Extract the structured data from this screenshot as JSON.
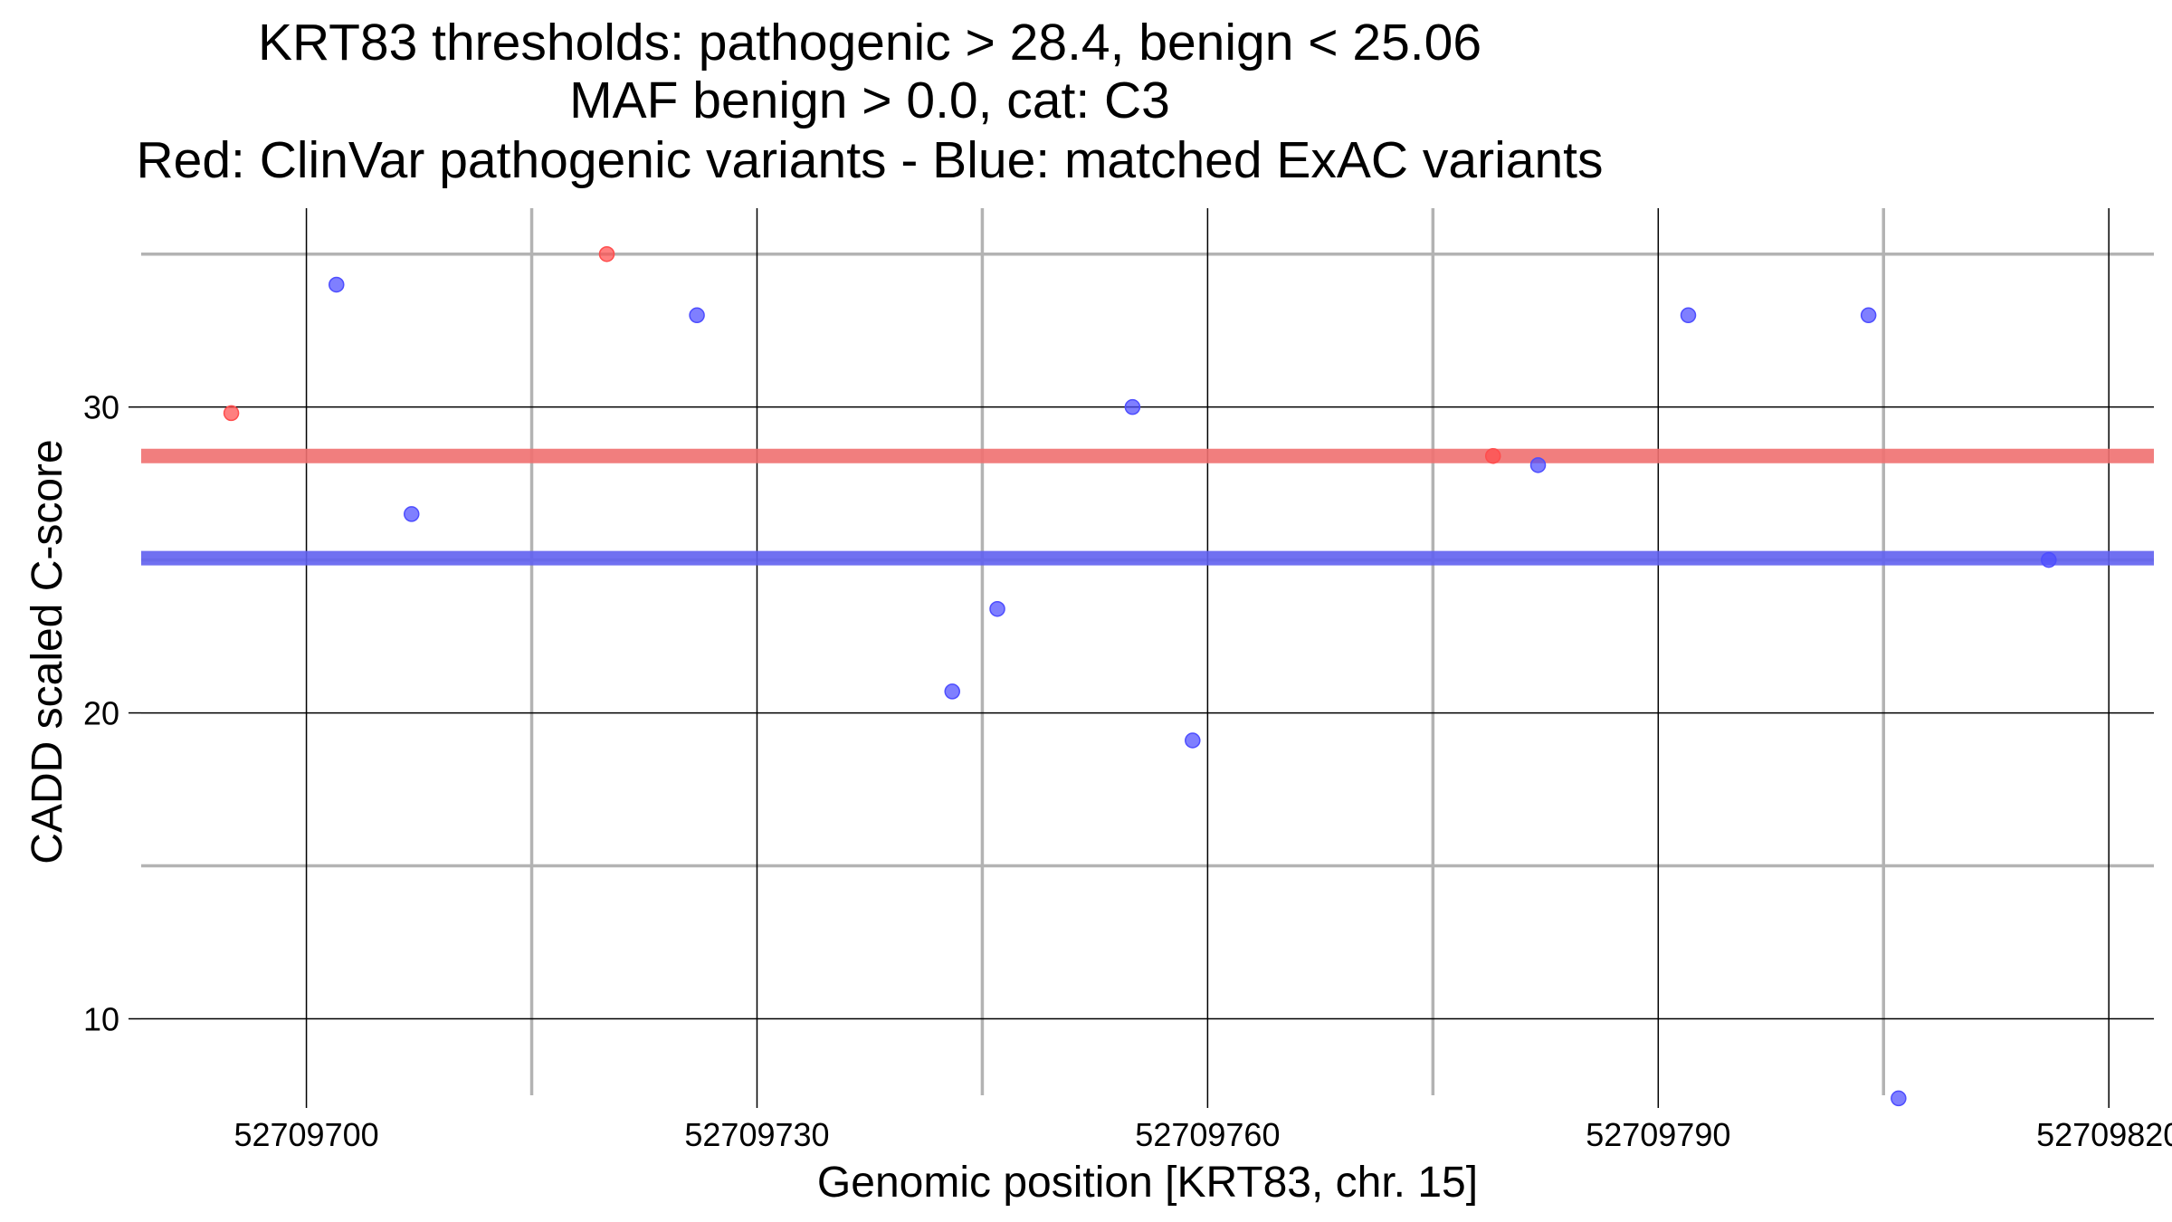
{
  "chart_data": {
    "type": "scatter",
    "title_lines": [
      "KRT83 thresholds: pathogenic > 28.4, benign < 25.06",
      "MAF benign > 0.0, cat: C3",
      "Red: ClinVar pathogenic variants - Blue: matched ExAC variants"
    ],
    "xlabel": "Genomic position [KRT83, chr. 15]",
    "ylabel": "CADD scaled C-score",
    "xlim": [
      52709689,
      52709823
    ],
    "ylim": [
      7.5,
      36.5
    ],
    "x_major_ticks": [
      52709700,
      52709730,
      52709760,
      52709790,
      52709820
    ],
    "x_tick_labels": [
      "52709700",
      "52709730",
      "52709760",
      "52709790",
      "52709820"
    ],
    "x_minor_ticks": [
      52709715,
      52709745,
      52709775,
      52709805
    ],
    "y_major_ticks": [
      10,
      20,
      30
    ],
    "y_tick_labels": [
      "10",
      "20",
      "30"
    ],
    "y_minor_ticks": [
      15,
      25,
      35
    ],
    "grid": true,
    "thresholds": {
      "pathogenic": 28.4,
      "benign": 25.06,
      "maf_benign": 0.0,
      "category": "C3"
    },
    "threshold_lines": [
      {
        "name": "pathogenic-threshold",
        "y": 28.4,
        "color": "#f07070"
      },
      {
        "name": "benign-threshold",
        "y": 25.06,
        "color": "#6060f0"
      }
    ],
    "series": [
      {
        "name": "ClinVar pathogenic variants",
        "color": "#ff4d4d",
        "points": [
          {
            "x": 52709695,
            "y": 29.8
          },
          {
            "x": 52709720,
            "y": 35.0
          },
          {
            "x": 52709779,
            "y": 28.4
          }
        ]
      },
      {
        "name": "matched ExAC variants",
        "color": "#4d4dff",
        "points": [
          {
            "x": 52709702,
            "y": 34.0
          },
          {
            "x": 52709707,
            "y": 26.5
          },
          {
            "x": 52709726,
            "y": 33.0
          },
          {
            "x": 52709743,
            "y": 20.7
          },
          {
            "x": 52709746,
            "y": 23.4
          },
          {
            "x": 52709755,
            "y": 30.0
          },
          {
            "x": 52709759,
            "y": 19.1
          },
          {
            "x": 52709782,
            "y": 28.1
          },
          {
            "x": 52709792,
            "y": 33.0
          },
          {
            "x": 52709804,
            "y": 33.0
          },
          {
            "x": 52709806,
            "y": 7.4
          },
          {
            "x": 52709816,
            "y": 25.0
          }
        ]
      }
    ]
  }
}
